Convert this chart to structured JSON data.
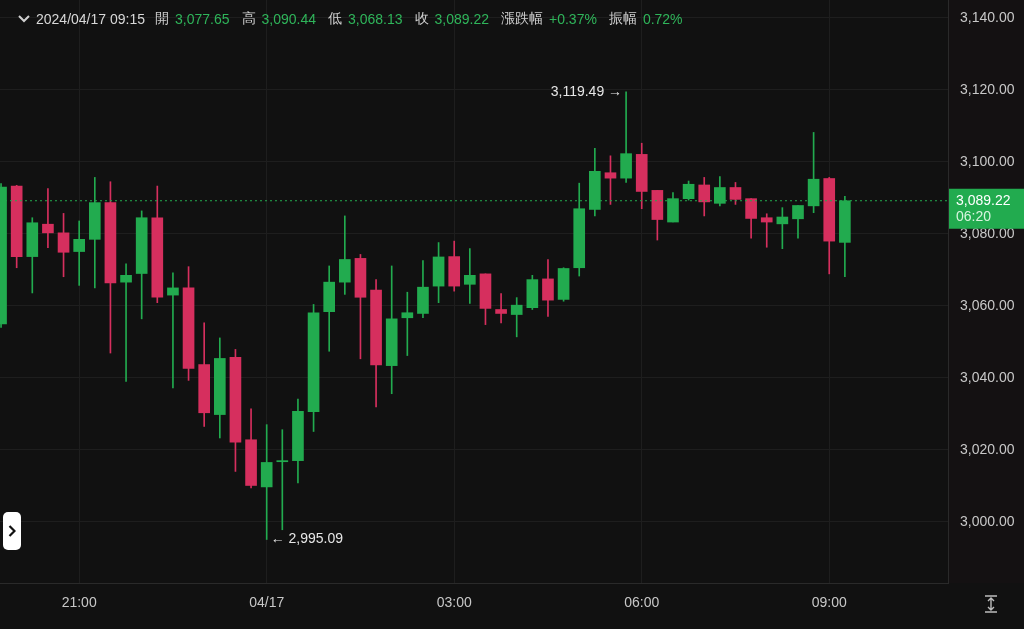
{
  "chart_data": {
    "type": "candlestick",
    "title": "2024/04/17 09:15",
    "annotations": [
      "開",
      "3,077.65",
      "高",
      "3,090.44",
      "低",
      "3,068.13",
      "收",
      "3,089.22",
      "漲跌幅",
      "+0.37%",
      "振幅",
      "0.72%",
      {
        "text": "3,119.49 →",
        "x": "2024-04-17T05:45",
        "y": 3119.49
      },
      {
        "text": "← 2,995.09",
        "x": "2024-04-17T00:00",
        "y": 2995.09
      }
    ],
    "x": [
      "2024-04-16T19:45",
      "2024-04-16T20:00",
      "2024-04-16T20:15",
      "2024-04-16T20:30",
      "2024-04-16T20:45",
      "2024-04-16T21:00",
      "2024-04-16T21:15",
      "2024-04-16T21:30",
      "2024-04-16T21:45",
      "2024-04-16T22:00",
      "2024-04-16T22:15",
      "2024-04-16T22:30",
      "2024-04-16T22:45",
      "2024-04-16T23:00",
      "2024-04-16T23:15",
      "2024-04-16T23:30",
      "2024-04-16T23:45",
      "2024-04-17T00:00",
      "2024-04-17T00:15",
      "2024-04-17T00:30",
      "2024-04-17T00:45",
      "2024-04-17T01:00",
      "2024-04-17T01:15",
      "2024-04-17T01:30",
      "2024-04-17T01:45",
      "2024-04-17T02:00",
      "2024-04-17T02:15",
      "2024-04-17T02:30",
      "2024-04-17T02:45",
      "2024-04-17T03:00",
      "2024-04-17T03:15",
      "2024-04-17T03:30",
      "2024-04-17T03:45",
      "2024-04-17T04:00",
      "2024-04-17T04:15",
      "2024-04-17T04:30",
      "2024-04-17T04:45",
      "2024-04-17T05:00",
      "2024-04-17T05:15",
      "2024-04-17T05:30",
      "2024-04-17T05:45",
      "2024-04-17T06:00",
      "2024-04-17T06:15",
      "2024-04-17T06:30",
      "2024-04-17T06:45",
      "2024-04-17T07:00",
      "2024-04-17T07:15",
      "2024-04-17T07:30",
      "2024-04-17T07:45",
      "2024-04-17T08:00",
      "2024-04-17T08:15",
      "2024-04-17T08:30",
      "2024-04-17T08:45",
      "2024-04-17T09:00",
      "2024-04-17T09:15"
    ],
    "ohlc": [
      [
        3055,
        3094,
        3054,
        3093
      ],
      [
        3093.3,
        3093.5,
        3070.6,
        3073.7
      ],
      [
        3073.7,
        3084.5,
        3063.6,
        3083.1
      ],
      [
        3082.7,
        3092.6,
        3076.2,
        3080.3
      ],
      [
        3080.3,
        3085.7,
        3068.1,
        3074.9
      ],
      [
        3075.1,
        3083.6,
        3065.7,
        3078.5
      ],
      [
        3078.5,
        3095.7,
        3065.0,
        3088.7
      ],
      [
        3088.7,
        3094.5,
        3046.9,
        3066.4
      ],
      [
        3066.6,
        3071.7,
        3039.0,
        3068.5
      ],
      [
        3069.0,
        3086.4,
        3056.4,
        3084.5
      ],
      [
        3084.5,
        3093.3,
        3060.9,
        3062.4
      ],
      [
        3063.0,
        3069.2,
        3037.2,
        3065.0
      ],
      [
        3065.0,
        3070.9,
        3039.3,
        3042.6
      ],
      [
        3043.7,
        3055.3,
        3026.5,
        3030.3
      ],
      [
        3029.8,
        3051.1,
        3023.3,
        3045.4
      ],
      [
        3045.7,
        3047.9,
        3014.0,
        3022.1
      ],
      [
        3022.8,
        3031.4,
        3009.4,
        3010.1
      ],
      [
        3009.7,
        3027.0,
        2995.09,
        3016.5
      ],
      [
        3016.7,
        3025.6,
        2997.8,
        3017.0
      ],
      [
        3017.0,
        3034.1,
        3010.8,
        3030.7
      ],
      [
        3030.6,
        3060.4,
        3025.1,
        3058.1
      ],
      [
        3058.4,
        3071.1,
        3047.4,
        3066.6
      ],
      [
        3066.6,
        3085.0,
        3063.2,
        3072.9
      ],
      [
        3073.2,
        3074.3,
        3045.3,
        3062.4
      ],
      [
        3064.4,
        3067.3,
        3031.9,
        3043.6
      ],
      [
        3043.4,
        3071.1,
        3035.6,
        3056.4
      ],
      [
        3056.7,
        3063.8,
        3046.2,
        3058.1
      ],
      [
        3057.9,
        3072.6,
        3056.7,
        3065.2
      ],
      [
        3065.5,
        3077.6,
        3060.9,
        3073.6
      ],
      [
        3073.7,
        3078.0,
        3064.1,
        3065.5
      ],
      [
        3066.0,
        3075.9,
        3060.7,
        3068.5
      ],
      [
        3068.9,
        3068.9,
        3054.8,
        3059.3
      ],
      [
        3059.0,
        3063.4,
        3055.3,
        3057.9
      ],
      [
        3057.6,
        3062.3,
        3051.4,
        3060.2
      ],
      [
        3059.5,
        3068.5,
        3059.0,
        3067.3
      ],
      [
        3067.5,
        3072.9,
        3057.1,
        3061.6
      ],
      [
        3061.8,
        3070.6,
        3061.3,
        3070.4
      ],
      [
        3070.6,
        3094.1,
        3068.3,
        3087.0
      ],
      [
        3086.8,
        3103.8,
        3085.0,
        3097.4
      ],
      [
        3097.0,
        3101.7,
        3088.2,
        3095.5
      ],
      [
        3095.5,
        3119.49,
        3094.3,
        3102.3
      ],
      [
        3102.1,
        3105.2,
        3087.0,
        3091.8
      ],
      [
        3092.1,
        3092.1,
        3078.3,
        3084.0
      ],
      [
        3083.3,
        3091.5,
        3083.3,
        3089.8
      ],
      [
        3089.8,
        3094.7,
        3089.4,
        3093.8
      ],
      [
        3093.6,
        3095.7,
        3085.0,
        3088.9
      ],
      [
        3088.5,
        3095.9,
        3087.8,
        3092.9
      ],
      [
        3092.9,
        3094.3,
        3088.2,
        3089.6
      ],
      [
        3089.8,
        3089.8,
        3078.8,
        3084.3
      ],
      [
        3084.5,
        3085.6,
        3076.3,
        3083.3
      ],
      [
        3082.8,
        3087.3,
        3075.9,
        3084.7
      ],
      [
        3084.2,
        3087.9,
        3078.8,
        3087.9
      ],
      [
        3087.8,
        3108.2,
        3085.9,
        3095.2
      ],
      [
        3095.4,
        3095.7,
        3068.9,
        3078.0
      ],
      [
        3077.65,
        3090.44,
        3068.13,
        3089.22
      ]
    ],
    "colors": [
      "#22ab4f",
      "#d62f5e",
      "#22ab4f",
      "#d62f5e",
      "#d62f5e",
      "#22ab4f",
      "#22ab4f",
      "#d62f5e",
      "#22ab4f",
      "#22ab4f",
      "#d62f5e",
      "#22ab4f",
      "#d62f5e",
      "#d62f5e",
      "#22ab4f",
      "#d62f5e",
      "#d62f5e",
      "#22ab4f",
      "#22ab4f",
      "#22ab4f",
      "#22ab4f",
      "#22ab4f",
      "#22ab4f",
      "#d62f5e",
      "#d62f5e",
      "#22ab4f",
      "#22ab4f",
      "#22ab4f",
      "#22ab4f",
      "#d62f5e",
      "#22ab4f",
      "#d62f5e",
      "#d62f5e",
      "#22ab4f",
      "#22ab4f",
      "#d62f5e",
      "#22ab4f",
      "#22ab4f",
      "#22ab4f",
      "#d62f5e",
      "#22ab4f",
      "#d62f5e",
      "#d62f5e",
      "#22ab4f",
      "#22ab4f",
      "#d62f5e",
      "#22ab4f",
      "#d62f5e",
      "#d62f5e",
      "#d62f5e",
      "#22ab4f",
      "#22ab4f",
      "#22ab4f",
      "#d62f5e",
      "#22ab4f"
    ],
    "xlim": [
      "2024-04-16T19:44",
      "2024-04-17T10:54"
    ],
    "xticks": [
      {
        "value": "2024-04-16T21:00",
        "label": "21:00"
      },
      {
        "value": "2024-04-17T00:00",
        "label": "04/17"
      },
      {
        "value": "2024-04-17T03:00",
        "label": "03:00"
      },
      {
        "value": "2024-04-17T06:00",
        "label": "06:00"
      },
      {
        "value": "2024-04-17T09:00",
        "label": "09:00"
      }
    ],
    "ylim": [
      2983,
      3145
    ],
    "yticks": [
      {
        "value": 3000,
        "label": "3,000.00"
      },
      {
        "value": 3020,
        "label": "3,020.00"
      },
      {
        "value": 3040,
        "label": "3,040.00"
      },
      {
        "value": 3060,
        "label": "3,060.00"
      },
      {
        "value": 3080,
        "label": "3,080.00"
      },
      {
        "value": 3100,
        "label": "3,100.00"
      },
      {
        "value": 3120,
        "label": "3,120.00"
      },
      {
        "value": 3140,
        "label": "3,140.00"
      }
    ],
    "ref_lines": [
      {
        "axis": "y",
        "value": 3089.22,
        "label": "3,089.22\n06:20",
        "color": "#22ab4f",
        "line_style": "dotted"
      }
    ],
    "grid": true,
    "legend": false
  }
}
